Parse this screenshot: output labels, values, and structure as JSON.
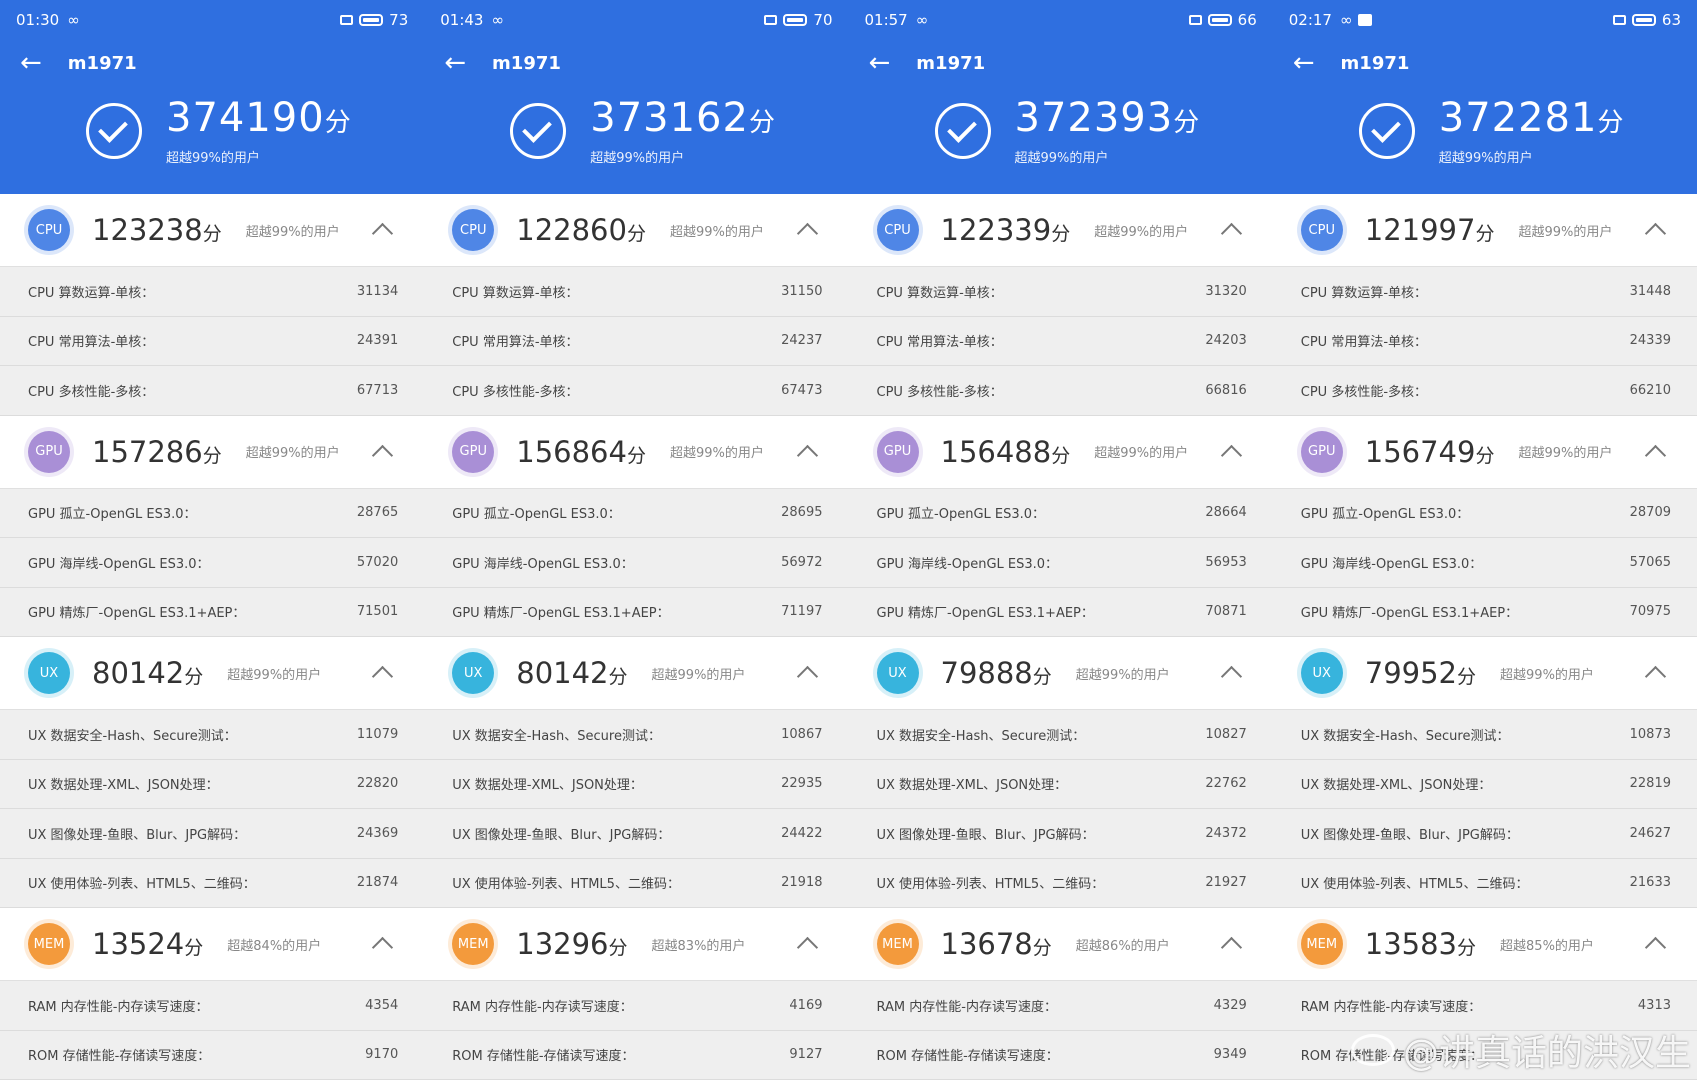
{
  "labels": {
    "cpu": [
      "CPU 算数运算-单核：",
      "CPU 常用算法-单核：",
      "CPU 多核性能-多核："
    ],
    "gpu": [
      "GPU 孤立-OpenGL ES3.0：",
      "GPU 海岸线-OpenGL ES3.0：",
      "GPU 精炼厂-OpenGL ES3.1+AEP："
    ],
    "ux": [
      "UX 数据安全-Hash、Secure测试：",
      "UX 数据处理-XML、JSON处理：",
      "UX 图像处理-鱼眼、Blur、JPG解码：",
      "UX 使用体验-列表、HTML5、二维码："
    ],
    "mem": [
      "RAM 内存性能-内存读写速度：",
      "ROM 存储性能-存储读写速度："
    ]
  },
  "unit": "分",
  "watermark": "@讲真话的洪汉生",
  "colors": {
    "header": "#2f6fe0",
    "cpu_badge": "#4f86e6",
    "gpu_badge": "#a98fd6",
    "ux_badge": "#37b4dd",
    "mem_badge": "#f39a3c"
  },
  "screens": [
    {
      "status": {
        "time": "01:30",
        "battery": "73",
        "extra": ""
      },
      "device": "m1971",
      "total": {
        "score": "374190",
        "beat": "超越99%的用户"
      },
      "sections": [
        {
          "badge": "CPU",
          "color": "#4f86e6",
          "score": "123238",
          "beat": "超越99%的用户",
          "values": [
            "31134",
            "24391",
            "67713"
          ]
        },
        {
          "badge": "GPU",
          "color": "#a98fd6",
          "score": "157286",
          "beat": "超越99%的用户",
          "values": [
            "28765",
            "57020",
            "71501"
          ]
        },
        {
          "badge": "UX",
          "color": "#37b4dd",
          "score": "80142",
          "beat": "超越99%的用户",
          "values": [
            "11079",
            "22820",
            "24369",
            "21874"
          ]
        },
        {
          "badge": "MEM",
          "color": "#f39a3c",
          "score": "13524",
          "beat": "超越84%的用户",
          "values": [
            "4354",
            "9170"
          ]
        }
      ]
    },
    {
      "status": {
        "time": "01:43",
        "battery": "70",
        "extra": ""
      },
      "device": "m1971",
      "total": {
        "score": "373162",
        "beat": "超越99%的用户"
      },
      "sections": [
        {
          "badge": "CPU",
          "color": "#4f86e6",
          "score": "122860",
          "beat": "超越99%的用户",
          "values": [
            "31150",
            "24237",
            "67473"
          ]
        },
        {
          "badge": "GPU",
          "color": "#a98fd6",
          "score": "156864",
          "beat": "超越99%的用户",
          "values": [
            "28695",
            "56972",
            "71197"
          ]
        },
        {
          "badge": "UX",
          "color": "#37b4dd",
          "score": "80142",
          "beat": "超越99%的用户",
          "values": [
            "10867",
            "22935",
            "24422",
            "21918"
          ]
        },
        {
          "badge": "MEM",
          "color": "#f39a3c",
          "score": "13296",
          "beat": "超越83%的用户",
          "values": [
            "4169",
            "9127"
          ]
        }
      ]
    },
    {
      "status": {
        "time": "01:57",
        "battery": "66",
        "extra": ""
      },
      "device": "m1971",
      "total": {
        "score": "372393",
        "beat": "超越99%的用户"
      },
      "sections": [
        {
          "badge": "CPU",
          "color": "#4f86e6",
          "score": "122339",
          "beat": "超越99%的用户",
          "values": [
            "31320",
            "24203",
            "66816"
          ]
        },
        {
          "badge": "GPU",
          "color": "#a98fd6",
          "score": "156488",
          "beat": "超越99%的用户",
          "values": [
            "28664",
            "56953",
            "70871"
          ]
        },
        {
          "badge": "UX",
          "color": "#37b4dd",
          "score": "79888",
          "beat": "超越99%的用户",
          "values": [
            "10827",
            "22762",
            "24372",
            "21927"
          ]
        },
        {
          "badge": "MEM",
          "color": "#f39a3c",
          "score": "13678",
          "beat": "超越86%的用户",
          "values": [
            "4329",
            "9349"
          ]
        }
      ]
    },
    {
      "status": {
        "time": "02:17",
        "battery": "63",
        "extra": "photo"
      },
      "device": "m1971",
      "total": {
        "score": "372281",
        "beat": "超越99%的用户"
      },
      "sections": [
        {
          "badge": "CPU",
          "color": "#4f86e6",
          "score": "121997",
          "beat": "超越99%的用户",
          "values": [
            "31448",
            "24339",
            "66210"
          ]
        },
        {
          "badge": "GPU",
          "color": "#a98fd6",
          "score": "156749",
          "beat": "超越99%的用户",
          "values": [
            "28709",
            "57065",
            "70975"
          ]
        },
        {
          "badge": "UX",
          "color": "#37b4dd",
          "score": "79952",
          "beat": "超越99%的用户",
          "values": [
            "10873",
            "22819",
            "24627",
            "21633"
          ]
        },
        {
          "badge": "MEM",
          "color": "#f39a3c",
          "score": "13583",
          "beat": "超越85%的用户",
          "values": [
            "4313",
            ""
          ]
        }
      ]
    }
  ]
}
